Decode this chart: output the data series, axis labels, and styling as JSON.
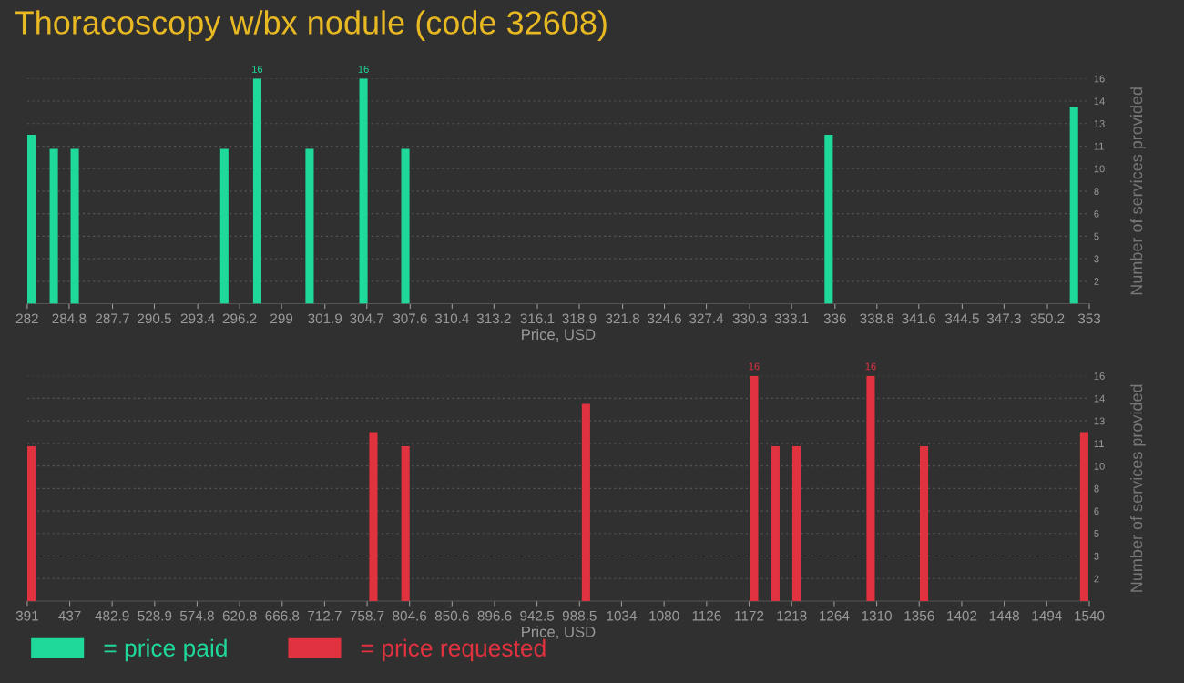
{
  "chart_data": [
    {
      "type": "bar",
      "title": "Thoracoscopy w/bx nodule (code 32608)",
      "xlabel": "Price, USD",
      "ylabel": "Number of services provided",
      "x": [
        282,
        283.5,
        284.9,
        294.9,
        297.1,
        300.6,
        304.2,
        307.0,
        335.3,
        351.7
      ],
      "series": [
        {
          "name": "= price paid",
          "color": "#1fd99b",
          "values": [
            12,
            11,
            11,
            11,
            16,
            11,
            16,
            11,
            12,
            14
          ],
          "value_labels": [
            null,
            null,
            null,
            null,
            "16",
            null,
            "16",
            null,
            null,
            null
          ]
        }
      ],
      "xlim": [
        282,
        353
      ],
      "xticks": [
        282,
        284.8,
        287.7,
        290.5,
        293.4,
        296.2,
        299,
        301.9,
        304.7,
        307.6,
        310.4,
        313.2,
        316.1,
        318.9,
        321.8,
        324.6,
        327.4,
        330.3,
        333.1,
        336,
        338.8,
        341.6,
        344.5,
        347.3,
        350.2,
        353
      ],
      "ylim": [
        0,
        16
      ],
      "yticks": [
        {
          "value": 1.6,
          "label": "2"
        },
        {
          "value": 3.2,
          "label": "3"
        },
        {
          "value": 4.8,
          "label": "5"
        },
        {
          "value": 6.4,
          "label": "6"
        },
        {
          "value": 8,
          "label": "8"
        },
        {
          "value": 9.6,
          "label": "10"
        },
        {
          "value": 11.2,
          "label": "11"
        },
        {
          "value": 12.8,
          "label": "13"
        },
        {
          "value": 14.4,
          "label": "14"
        },
        {
          "value": 16,
          "label": "16"
        }
      ],
      "grid": "y",
      "legend": "bottom left"
    },
    {
      "type": "bar",
      "xlabel": "Price, USD",
      "ylabel": "Number of services provided",
      "x": [
        391,
        761,
        795.7,
        991,
        1172.9,
        1196,
        1218.7,
        1299,
        1356.7,
        1530
      ],
      "series": [
        {
          "name": "= price requested",
          "color": "#e0323f",
          "values": [
            11,
            12,
            11,
            14,
            16,
            11,
            11,
            16,
            11,
            12
          ],
          "value_labels": [
            null,
            null,
            null,
            null,
            "16",
            null,
            null,
            "16",
            null,
            null
          ]
        }
      ],
      "xlim": [
        391,
        1540
      ],
      "xticks": [
        391,
        437,
        482.9,
        528.9,
        574.8,
        620.8,
        666.8,
        712.7,
        758.7,
        804.6,
        850.6,
        896.6,
        942.5,
        988.5,
        1034,
        1080,
        1126,
        1172,
        1218,
        1264,
        1310,
        1356,
        1402,
        1448,
        1494,
        1540
      ],
      "ylim": [
        0,
        16
      ],
      "yticks": [
        {
          "value": 1.6,
          "label": "2"
        },
        {
          "value": 3.2,
          "label": "3"
        },
        {
          "value": 4.8,
          "label": "5"
        },
        {
          "value": 6.4,
          "label": "6"
        },
        {
          "value": 8,
          "label": "8"
        },
        {
          "value": 9.6,
          "label": "10"
        },
        {
          "value": 11.2,
          "label": "11"
        },
        {
          "value": 12.8,
          "label": "13"
        },
        {
          "value": 14.4,
          "label": "14"
        },
        {
          "value": 16,
          "label": "16"
        }
      ],
      "grid": "y",
      "legend": "bottom left"
    }
  ]
}
